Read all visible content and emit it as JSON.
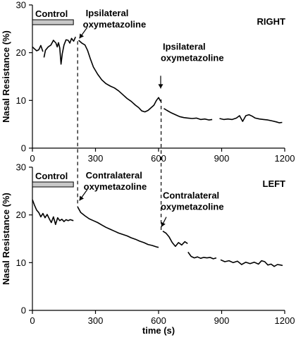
{
  "chart_data": {
    "type": "line",
    "x_axis": {
      "label": "time (s)",
      "range": [
        0,
        1200
      ],
      "ticks": [
        0,
        300,
        600,
        900,
        1200
      ]
    },
    "y_axis": {
      "label": "Nasal Resistance (%)",
      "range": [
        0,
        30
      ],
      "ticks": [
        0,
        10,
        20,
        30
      ]
    },
    "panels": [
      {
        "title": "RIGHT",
        "control_label": "Control",
        "control_range": [
          0,
          195
        ],
        "annotations": [
          {
            "text": "Ipsilateral oxymetazoline",
            "x": 220,
            "y": 23
          },
          {
            "text": "Ipsilateral oxymetazoline",
            "x": 610,
            "y": 12.5
          }
        ],
        "segments": [
          [
            [
              0,
              21.2
            ],
            [
              10,
              20.8
            ],
            [
              20,
              20.4
            ],
            [
              30,
              20.6
            ],
            [
              40,
              21.5
            ],
            [
              50,
              20.2
            ]
          ],
          [
            [
              55,
              19.0
            ],
            [
              62,
              20.5
            ],
            [
              75,
              21.2
            ],
            [
              88,
              21.6
            ],
            [
              100,
              22.6
            ],
            [
              112,
              22.0
            ],
            [
              118,
              21.2
            ],
            [
              124,
              22.1
            ],
            [
              130,
              21.0
            ],
            [
              136,
              17.6
            ],
            [
              142,
              19.8
            ],
            [
              150,
              21.6
            ],
            [
              160,
              22.7
            ],
            [
              170,
              22.6
            ],
            [
              178,
              22.0
            ],
            [
              186,
              23.0
            ],
            [
              196,
              22.4
            ],
            [
              205,
              23.3
            ]
          ],
          [
            [
              220,
              22.6
            ],
            [
              235,
              22.0
            ],
            [
              250,
              21.6
            ],
            [
              262,
              20.5
            ],
            [
              275,
              18.8
            ],
            [
              290,
              17.0
            ],
            [
              310,
              15.5
            ],
            [
              330,
              14.3
            ],
            [
              350,
              13.5
            ],
            [
              370,
              13.0
            ],
            [
              390,
              12.6
            ],
            [
              410,
              12.0
            ],
            [
              430,
              11.2
            ],
            [
              450,
              10.4
            ],
            [
              470,
              9.8
            ],
            [
              490,
              9.0
            ],
            [
              505,
              8.5
            ],
            [
              520,
              7.8
            ],
            [
              535,
              7.6
            ],
            [
              550,
              7.9
            ],
            [
              565,
              8.5
            ],
            [
              578,
              9.0
            ],
            [
              590,
              10.0
            ],
            [
              600,
              10.6
            ],
            [
              610,
              9.8
            ]
          ],
          [
            [
              625,
              8.3
            ],
            [
              640,
              7.9
            ],
            [
              660,
              7.4
            ],
            [
              680,
              7.0
            ],
            [
              700,
              6.6
            ],
            [
              720,
              6.4
            ],
            [
              740,
              6.3
            ],
            [
              760,
              6.2
            ],
            [
              780,
              6.3
            ],
            [
              800,
              6.0
            ],
            [
              820,
              6.1
            ],
            [
              840,
              5.9
            ],
            [
              855,
              6.0
            ]
          ],
          [
            [
              890,
              6.2
            ],
            [
              910,
              6.0
            ],
            [
              930,
              6.1
            ],
            [
              950,
              6.0
            ],
            [
              970,
              6.3
            ],
            [
              985,
              6.8
            ],
            [
              1000,
              5.6
            ],
            [
              1015,
              6.8
            ],
            [
              1030,
              7.0
            ],
            [
              1045,
              6.7
            ],
            [
              1060,
              6.3
            ],
            [
              1080,
              6.1
            ],
            [
              1100,
              6.0
            ],
            [
              1120,
              5.9
            ],
            [
              1140,
              5.7
            ],
            [
              1160,
              5.5
            ],
            [
              1175,
              5.3
            ],
            [
              1188,
              5.4
            ]
          ]
        ]
      },
      {
        "title": "LEFT",
        "control_label": "Control",
        "control_range": [
          0,
          195
        ],
        "annotations": [
          {
            "text": "Contralateral oxymetazoline",
            "x": 220,
            "y": 23
          },
          {
            "text": "Contralateral oxymetazoline",
            "x": 610,
            "y": 17.5
          }
        ],
        "segments": [
          [
            [
              0,
              23.2
            ],
            [
              10,
              22.0
            ],
            [
              20,
              21.0
            ],
            [
              30,
              20.5
            ],
            [
              40,
              19.6
            ],
            [
              50,
              20.3
            ],
            [
              60,
              19.4
            ],
            [
              70,
              20.1
            ],
            [
              80,
              19.2
            ],
            [
              90,
              18.4
            ],
            [
              100,
              19.6
            ],
            [
              110,
              18.0
            ],
            [
              120,
              19.4
            ],
            [
              130,
              18.8
            ],
            [
              140,
              19.1
            ],
            [
              150,
              18.6
            ],
            [
              160,
              19.0
            ],
            [
              170,
              18.8
            ],
            [
              180,
              19.0
            ],
            [
              195,
              18.8
            ]
          ],
          [
            [
              215,
              21.7
            ],
            [
              230,
              20.5
            ],
            [
              250,
              19.8
            ],
            [
              270,
              19.2
            ],
            [
              290,
              18.8
            ],
            [
              310,
              18.4
            ],
            [
              330,
              17.9
            ],
            [
              350,
              17.4
            ],
            [
              370,
              17.0
            ],
            [
              390,
              16.6
            ],
            [
              410,
              16.2
            ],
            [
              430,
              15.9
            ],
            [
              450,
              15.6
            ],
            [
              470,
              15.2
            ],
            [
              490,
              14.9
            ],
            [
              510,
              14.5
            ],
            [
              530,
              14.2
            ],
            [
              550,
              13.8
            ],
            [
              570,
              13.6
            ],
            [
              590,
              13.3
            ],
            [
              600,
              13.2
            ]
          ],
          [
            [
              620,
              16.6
            ],
            [
              635,
              16.2
            ],
            [
              650,
              15.4
            ],
            [
              665,
              14.2
            ],
            [
              680,
              13.4
            ],
            [
              695,
              14.2
            ],
            [
              710,
              13.7
            ],
            [
              725,
              14.4
            ],
            [
              738,
              14.0
            ]
          ],
          [
            [
              740,
              12.2
            ],
            [
              755,
              11.3
            ],
            [
              770,
              11.0
            ],
            [
              785,
              11.2
            ],
            [
              800,
              10.9
            ],
            [
              815,
              11.1
            ],
            [
              830,
              11.0
            ],
            [
              845,
              11.1
            ],
            [
              860,
              10.8
            ],
            [
              875,
              11.0
            ]
          ],
          [
            [
              895,
              10.6
            ],
            [
              915,
              10.2
            ],
            [
              935,
              10.4
            ],
            [
              955,
              10.0
            ],
            [
              975,
              10.3
            ],
            [
              995,
              9.6
            ],
            [
              1015,
              10.1
            ],
            [
              1035,
              9.8
            ],
            [
              1055,
              10.1
            ],
            [
              1075,
              9.7
            ],
            [
              1090,
              10.4
            ],
            [
              1105,
              10.2
            ],
            [
              1120,
              9.5
            ],
            [
              1135,
              9.7
            ],
            [
              1150,
              9.2
            ],
            [
              1165,
              9.6
            ],
            [
              1180,
              9.5
            ],
            [
              1190,
              9.4
            ]
          ]
        ]
      }
    ],
    "drug_marks_x": [
      215,
      612
    ]
  }
}
